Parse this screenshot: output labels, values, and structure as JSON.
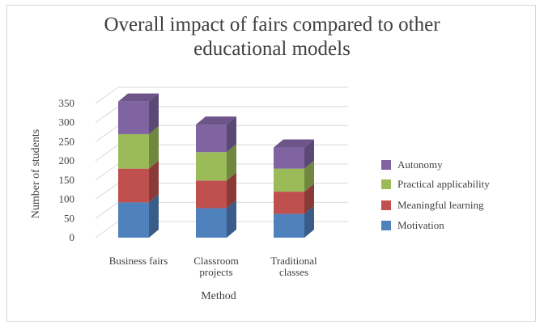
{
  "chart_data": {
    "type": "bar",
    "stacked": true,
    "three_d": true,
    "title": "Overall impact of fairs compared to other\neducational models",
    "xlabel": "Method",
    "ylabel": "Number of students",
    "ylim": [
      0,
      350
    ],
    "yticks": [
      0,
      50,
      100,
      150,
      200,
      250,
      300,
      350
    ],
    "grid": true,
    "legend_position": "right",
    "categories": [
      [
        "Business fairs"
      ],
      [
        "Classroom",
        "projects"
      ],
      [
        "Traditional",
        "classes"
      ]
    ],
    "series": [
      {
        "name": "Motivation",
        "values": [
          92,
          77,
          62
        ],
        "color": "#4f81bd"
      },
      {
        "name": "Meaningful learning",
        "values": [
          88,
          72,
          58
        ],
        "color": "#c0504d"
      },
      {
        "name": "Practical applicability",
        "values": [
          90,
          74,
          60
        ],
        "color": "#9bbb59"
      },
      {
        "name": "Autonomy",
        "values": [
          85,
          72,
          55
        ],
        "color": "#8064a2"
      }
    ]
  }
}
